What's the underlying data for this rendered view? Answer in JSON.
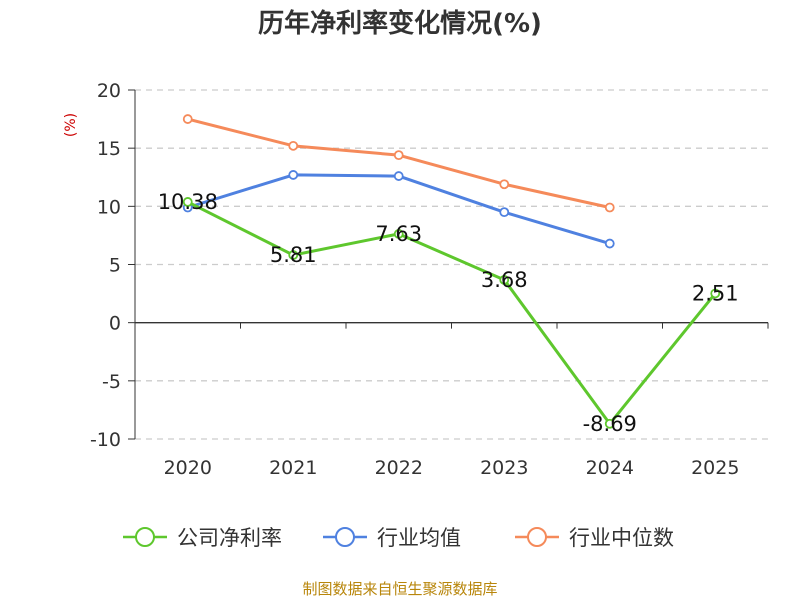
{
  "chart_data": {
    "type": "line",
    "title": "历年净利率变化情况(%)",
    "y_unit": "(%)",
    "categories": [
      "2020",
      "2021",
      "2022",
      "2023",
      "2024",
      "2025"
    ],
    "ylim": [
      -10,
      20
    ],
    "yticks": [
      "20",
      "15",
      "10",
      "5",
      "0",
      "-5",
      "-10"
    ],
    "ytick_values": [
      20,
      15,
      10,
      5,
      0,
      -5,
      -10
    ],
    "grid": true,
    "legend_position": "bottom",
    "series": [
      {
        "name": "公司净利率",
        "color": "#5ec72d",
        "values": [
          10.38,
          5.81,
          7.63,
          3.68,
          -8.69,
          2.51
        ],
        "labels": [
          "10.38",
          "5.81",
          "7.63",
          "3.68",
          "-8.69",
          "2.51"
        ]
      },
      {
        "name": "行业均值",
        "color": "#4f81e0",
        "values": [
          9.9,
          12.7,
          12.6,
          9.5,
          6.8,
          null
        ]
      },
      {
        "name": "行业中位数",
        "color": "#f58a5a",
        "values": [
          17.5,
          15.2,
          14.4,
          11.9,
          9.9,
          null
        ]
      }
    ]
  },
  "source": "制图数据来自恒生聚源数据库"
}
